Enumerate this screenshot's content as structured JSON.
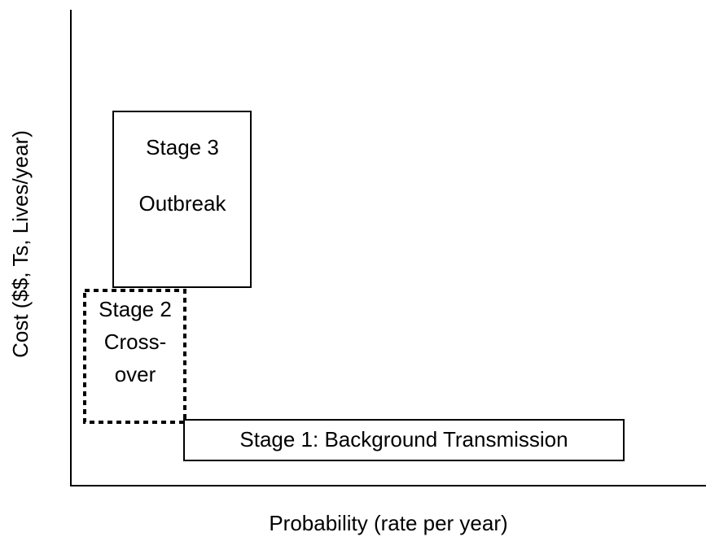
{
  "axes": {
    "y_label": "Cost ($$, Ts, Lives/year)",
    "x_label": "Probability (rate per year)"
  },
  "nodes": [
    {
      "lines": [
        "Stage 3",
        "Outbreak"
      ]
    },
    {
      "lines": [
        "Stage 2",
        "Cross-",
        "over"
      ]
    },
    {
      "lines": [
        "Stage 1: Background Transmission"
      ]
    }
  ]
}
